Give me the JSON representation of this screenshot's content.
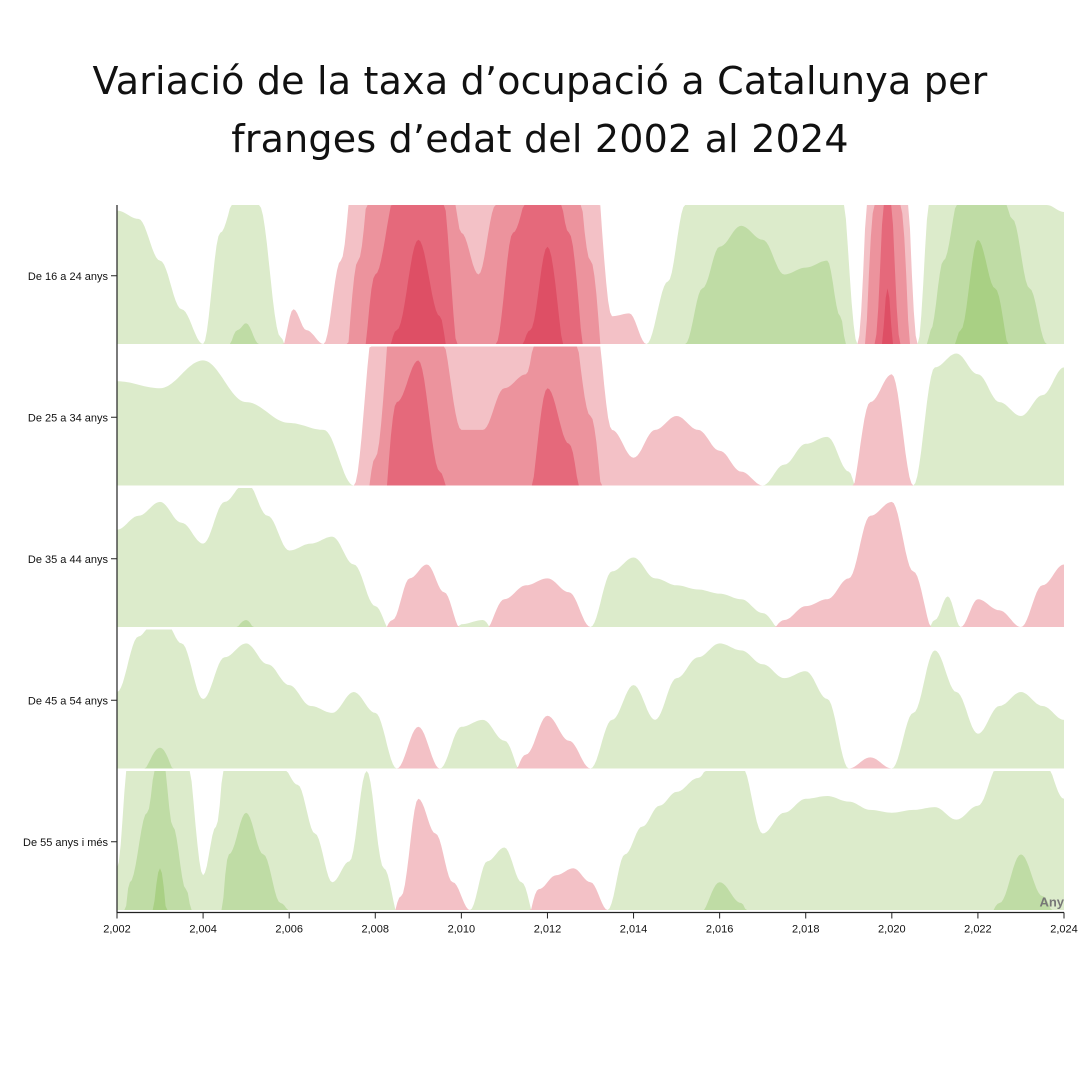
{
  "title_line1": "Variació de la taxa d’ocupació a Catalunya per",
  "title_line2": "franges d’edat del 2002 al 2024",
  "colors": {
    "positive_bands": [
      "#dcebcb",
      "#bfdca5",
      "#a9d084"
    ],
    "negative_bands": [
      "#f3c1c6",
      "#ec939d",
      "#e5697b",
      "#de4f65"
    ]
  },
  "chart_data": {
    "type": "horizon",
    "title": "Variació de la taxa d’ocupació a Catalunya per franges d’edat del 2002 al 2024",
    "xlabel": "Any",
    "xlim": [
      2002,
      2024
    ],
    "x_ticks": [
      2002,
      2004,
      2006,
      2008,
      2010,
      2012,
      2014,
      2016,
      2018,
      2020,
      2022,
      2024
    ],
    "x_tick_labels": [
      "2,002",
      "2,004",
      "2,006",
      "2,008",
      "2,010",
      "2,012",
      "2,014",
      "2,016",
      "2,018",
      "2,020",
      "2,022",
      "2,024"
    ],
    "band_size": 1.0,
    "legend": "none",
    "series": [
      {
        "name": "De 16 a 24 anys",
        "x": [
          2002.0,
          2002.5,
          2003.0,
          2003.5,
          2004.0,
          2004.4,
          2004.8,
          2005.0,
          2005.3,
          2005.8,
          2006.1,
          2006.4,
          2006.8,
          2007.2,
          2007.6,
          2008.0,
          2008.5,
          2009.0,
          2009.5,
          2010.0,
          2010.4,
          2010.8,
          2011.2,
          2011.6,
          2012.0,
          2012.5,
          2013.0,
          2013.5,
          2013.9,
          2014.3,
          2014.8,
          2015.2,
          2015.6,
          2016.0,
          2016.5,
          2017.0,
          2017.5,
          2018.0,
          2018.5,
          2018.8,
          2019.2,
          2019.6,
          2019.9,
          2020.2,
          2020.6,
          2020.9,
          2021.2,
          2021.6,
          2022.0,
          2022.4,
          2022.8,
          2023.2,
          2023.6,
          2024.0
        ],
        "values": [
          0.96,
          0.9,
          0.6,
          0.25,
          0.0,
          0.8,
          1.1,
          1.15,
          1.0,
          0.05,
          -0.25,
          -0.1,
          0.0,
          -0.6,
          -1.6,
          -2.5,
          -3.1,
          -3.75,
          -3.2,
          -1.8,
          -1.5,
          -2.0,
          -2.8,
          -3.1,
          -3.7,
          -2.8,
          -1.6,
          -0.2,
          -0.22,
          0.0,
          0.45,
          1.0,
          1.4,
          1.7,
          1.85,
          1.75,
          1.5,
          1.55,
          1.6,
          1.2,
          0.0,
          -2.0,
          -3.4,
          -2.0,
          0.0,
          1.1,
          1.6,
          2.1,
          2.75,
          2.4,
          1.9,
          1.4,
          1.0,
          0.95
        ]
      },
      {
        "name": "De 25 a 34 anys",
        "x": [
          2002.0,
          2003.0,
          2004.0,
          2005.0,
          2006.0,
          2006.8,
          2007.5,
          2008.0,
          2008.5,
          2009.0,
          2009.5,
          2010.0,
          2010.5,
          2011.0,
          2011.5,
          2012.0,
          2012.5,
          2013.0,
          2013.5,
          2014.0,
          2014.5,
          2015.0,
          2015.5,
          2016.0,
          2016.5,
          2017.0,
          2017.5,
          2018.0,
          2018.5,
          2019.0,
          2019.5,
          2020.0,
          2020.5,
          2021.0,
          2021.5,
          2022.0,
          2022.5,
          2023.0,
          2023.5,
          2024.0
        ],
        "values": [
          0.75,
          0.7,
          0.9,
          0.6,
          0.45,
          0.4,
          0.0,
          -1.2,
          -2.6,
          -2.9,
          -2.1,
          -1.4,
          -1.4,
          -1.7,
          -1.8,
          -2.7,
          -2.3,
          -1.5,
          -0.4,
          -0.2,
          -0.4,
          -0.5,
          -0.4,
          -0.25,
          -0.1,
          0.0,
          0.15,
          0.3,
          0.35,
          0.1,
          -0.6,
          -0.8,
          0.0,
          0.85,
          0.95,
          0.8,
          0.6,
          0.5,
          0.65,
          0.85
        ]
      },
      {
        "name": "De 35 a 44 anys",
        "x": [
          2002.0,
          2002.5,
          2003.0,
          2003.5,
          2004.0,
          2004.5,
          2005.0,
          2005.5,
          2006.0,
          2006.5,
          2007.0,
          2007.5,
          2008.0,
          2008.4,
          2008.8,
          2009.2,
          2009.6,
          2010.0,
          2010.5,
          2011.0,
          2011.5,
          2012.0,
          2012.5,
          2013.0,
          2013.5,
          2014.0,
          2014.5,
          2015.0,
          2015.5,
          2016.0,
          2016.5,
          2017.0,
          2017.5,
          2018.0,
          2018.5,
          2019.0,
          2019.5,
          2020.0,
          2020.5,
          2021.0,
          2021.3,
          2021.6,
          2022.0,
          2022.5,
          2023.0,
          2023.5,
          2024.0
        ],
        "values": [
          0.7,
          0.8,
          0.9,
          0.75,
          0.6,
          0.9,
          1.05,
          0.8,
          0.55,
          0.6,
          0.65,
          0.45,
          0.15,
          -0.05,
          -0.35,
          -0.45,
          -0.25,
          0.02,
          0.05,
          -0.2,
          -0.3,
          -0.35,
          -0.25,
          0.0,
          0.4,
          0.5,
          0.35,
          0.3,
          0.27,
          0.24,
          0.2,
          0.1,
          -0.05,
          -0.15,
          -0.2,
          -0.35,
          -0.8,
          -0.9,
          -0.4,
          0.05,
          0.22,
          0.0,
          -0.2,
          -0.12,
          0.0,
          -0.3,
          -0.45
        ]
      },
      {
        "name": "De 45 a 54 anys",
        "x": [
          2002.0,
          2002.5,
          2003.0,
          2003.5,
          2004.0,
          2004.5,
          2005.0,
          2005.5,
          2006.0,
          2006.5,
          2007.0,
          2007.5,
          2008.0,
          2008.5,
          2009.0,
          2009.5,
          2010.0,
          2010.5,
          2011.0,
          2011.5,
          2012.0,
          2012.5,
          2013.0,
          2013.5,
          2014.0,
          2014.5,
          2015.0,
          2015.5,
          2016.0,
          2016.5,
          2017.0,
          2017.5,
          2018.0,
          2018.5,
          2019.0,
          2019.5,
          2020.0,
          2020.5,
          2021.0,
          2021.5,
          2022.0,
          2022.5,
          2023.0,
          2023.5,
          2024.0
        ],
        "values": [
          0.55,
          0.95,
          1.15,
          0.9,
          0.5,
          0.8,
          0.9,
          0.75,
          0.6,
          0.45,
          0.4,
          0.55,
          0.4,
          0.0,
          -0.3,
          0.0,
          0.3,
          0.35,
          0.2,
          -0.1,
          -0.38,
          -0.2,
          0.0,
          0.35,
          0.6,
          0.35,
          0.65,
          0.8,
          0.9,
          0.85,
          0.75,
          0.65,
          0.7,
          0.5,
          0.0,
          -0.08,
          0.0,
          0.4,
          0.85,
          0.55,
          0.25,
          0.45,
          0.55,
          0.45,
          0.35
        ]
      },
      {
        "name": "De 55 anys i més",
        "x": [
          2002.0,
          2002.3,
          2002.7,
          2003.0,
          2003.3,
          2003.6,
          2004.0,
          2004.3,
          2004.6,
          2005.0,
          2005.4,
          2005.8,
          2006.2,
          2006.6,
          2007.0,
          2007.4,
          2007.8,
          2008.2,
          2008.6,
          2009.0,
          2009.4,
          2009.8,
          2010.2,
          2010.6,
          2011.0,
          2011.4,
          2011.8,
          2012.2,
          2012.6,
          2013.0,
          2013.4,
          2013.8,
          2014.2,
          2014.6,
          2015.0,
          2015.5,
          2016.0,
          2016.5,
          2017.0,
          2017.5,
          2018.0,
          2018.5,
          2019.0,
          2019.5,
          2020.0,
          2020.5,
          2021.0,
          2021.5,
          2022.0,
          2022.5,
          2023.0,
          2023.5,
          2024.0
        ],
        "values": [
          0.3,
          1.2,
          1.7,
          2.3,
          1.6,
          1.15,
          0.25,
          0.6,
          1.4,
          1.7,
          1.4,
          1.05,
          0.9,
          0.55,
          0.2,
          0.35,
          1.0,
          0.3,
          -0.1,
          -0.8,
          -0.55,
          -0.2,
          0.0,
          0.35,
          0.45,
          0.2,
          -0.15,
          -0.25,
          -0.3,
          -0.2,
          0.0,
          0.4,
          0.6,
          0.75,
          0.85,
          0.95,
          1.2,
          1.05,
          0.55,
          0.7,
          0.8,
          0.82,
          0.78,
          0.72,
          0.7,
          0.72,
          0.74,
          0.65,
          0.75,
          1.05,
          1.4,
          1.1,
          0.8
        ]
      }
    ]
  }
}
